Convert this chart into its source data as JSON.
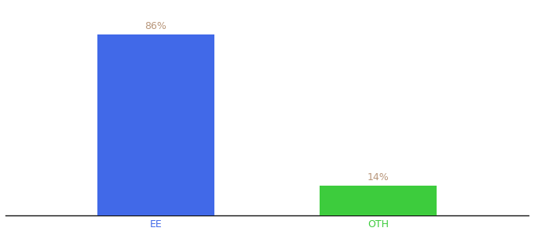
{
  "categories": [
    "EE",
    "OTH"
  ],
  "values": [
    86,
    14
  ],
  "bar_colors": [
    "#4169e8",
    "#3dcc3d"
  ],
  "label_color": "#b8967a",
  "background_color": "#ffffff",
  "ylim": [
    0,
    100
  ],
  "bar_width": 0.18,
  "x_positions": [
    0.28,
    0.62
  ],
  "xlim": [
    0.05,
    0.85
  ],
  "label_fontsize": 9,
  "tick_fontsize": 9
}
